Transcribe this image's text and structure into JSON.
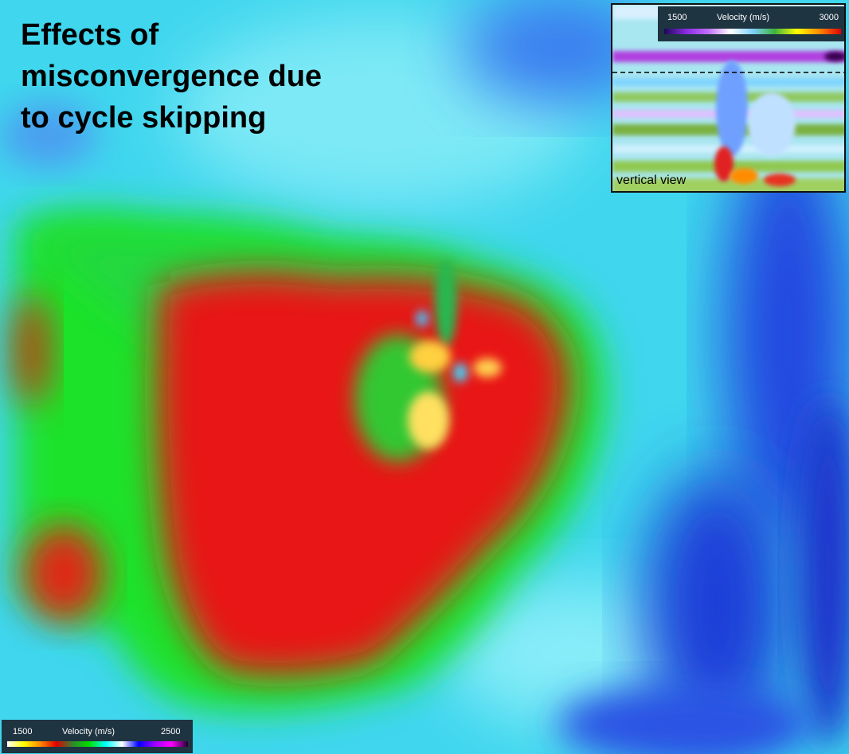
{
  "title": "Effects of\nmisconvergence due\nto cycle skipping",
  "inset": {
    "caption": "vertical view",
    "colorbar": {
      "label": "Velocity (m/s)",
      "min": "1500",
      "max": "3000"
    }
  },
  "main_colorbar": {
    "label": "Velocity (m/s)",
    "min": "1500",
    "max": "2500"
  },
  "colors": {
    "background_cyan": "#38d8f0",
    "blue_region": "#1a3cdc",
    "green_region": "#1fdc20",
    "red_region": "#e81010",
    "hot_spot": "#ffe060"
  }
}
